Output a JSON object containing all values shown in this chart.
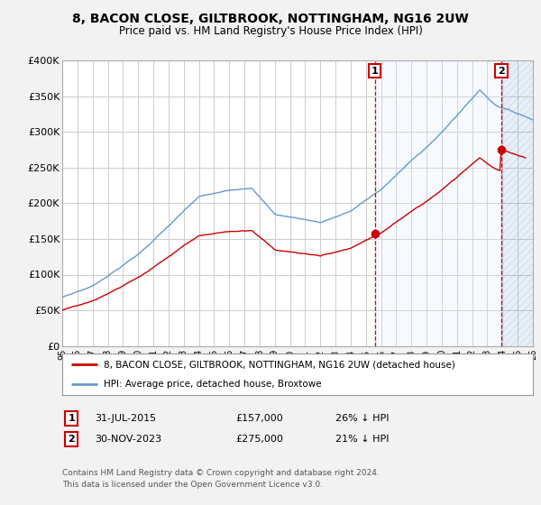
{
  "title": "8, BACON CLOSE, GILTBROOK, NOTTINGHAM, NG16 2UW",
  "subtitle": "Price paid vs. HM Land Registry's House Price Index (HPI)",
  "ylim": [
    0,
    400000
  ],
  "yticks": [
    0,
    50000,
    100000,
    150000,
    200000,
    250000,
    300000,
    350000,
    400000
  ],
  "ytick_labels": [
    "£0",
    "£50K",
    "£100K",
    "£150K",
    "£200K",
    "£250K",
    "£300K",
    "£350K",
    "£400K"
  ],
  "hpi_color": "#6699cc",
  "price_color": "#cc0000",
  "shade_color": "#ddeeff",
  "annotation_1": {
    "label": "1",
    "date_x": 2015.58,
    "price": 157000,
    "text": "31-JUL-2015",
    "amount": "£157,000",
    "pct": "26% ↓ HPI"
  },
  "annotation_2": {
    "label": "2",
    "date_x": 2023.92,
    "price": 275000,
    "text": "30-NOV-2023",
    "amount": "£275,000",
    "pct": "21% ↓ HPI"
  },
  "legend_entry_1": "8, BACON CLOSE, GILTBROOK, NOTTINGHAM, NG16 2UW (detached house)",
  "legend_entry_2": "HPI: Average price, detached house, Broxtowe",
  "footnote_1": "Contains HM Land Registry data © Crown copyright and database right 2024.",
  "footnote_2": "This data is licensed under the Open Government Licence v3.0.",
  "background_color": "#f2f2f2",
  "plot_bg_color": "#ffffff",
  "grid_color": "#cccccc",
  "xmin": 1995.0,
  "xmax": 2026.0
}
